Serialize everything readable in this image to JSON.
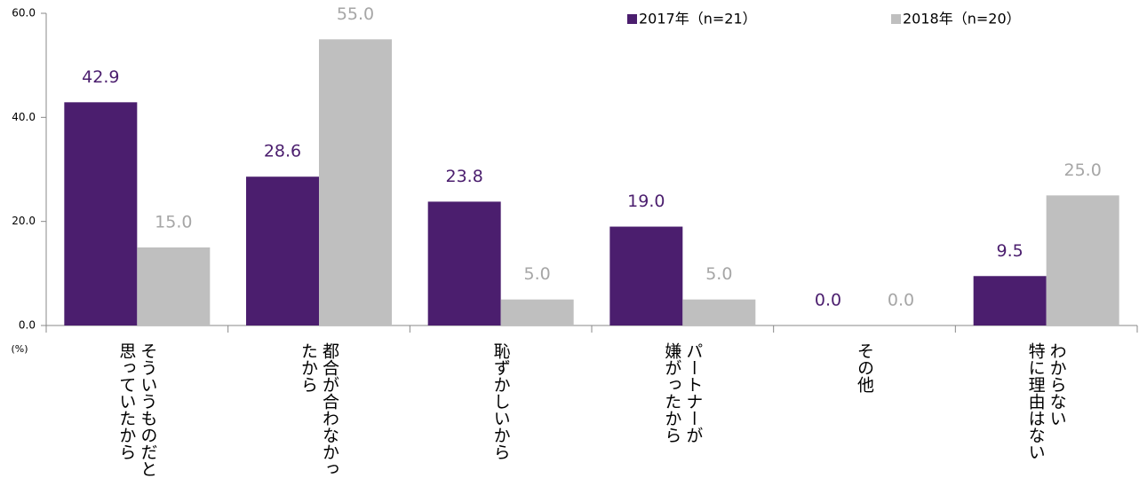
{
  "chart_data": {
    "type": "bar",
    "categories": [
      "そういうものだと\n思っていたから",
      "都合が合わなかっ\nたから",
      "恥ずかしいから",
      "パートナーが\n嫌がったから",
      "その他",
      "わからない\n特に理由はない"
    ],
    "series": [
      {
        "name": "2017年（n=21）",
        "color": "#4b1e6e",
        "label_color": "#4b1e6e",
        "values": [
          42.9,
          28.6,
          23.8,
          19.0,
          0.0,
          9.5
        ],
        "value_labels": [
          "42.9",
          "28.6",
          "23.8",
          "19.0",
          "0.0",
          "9.5"
        ]
      },
      {
        "name": "2018年（n=20）",
        "color": "#bfbfbf",
        "label_color": "#a6a6a6",
        "values": [
          15.0,
          55.0,
          5.0,
          5.0,
          0.0,
          25.0
        ],
        "value_labels": [
          "15.0",
          "55.0",
          "5.0",
          "5.0",
          "0.0",
          "25.0"
        ]
      }
    ],
    "ylim": [
      0,
      60
    ],
    "yticks": [
      {
        "value": 0,
        "label": "0.0"
      },
      {
        "value": 20,
        "label": "20.0"
      },
      {
        "value": 40,
        "label": "40.0"
      },
      {
        "value": 60,
        "label": "60.0"
      }
    ],
    "unit_label": "(%)",
    "legend": "top-right"
  }
}
